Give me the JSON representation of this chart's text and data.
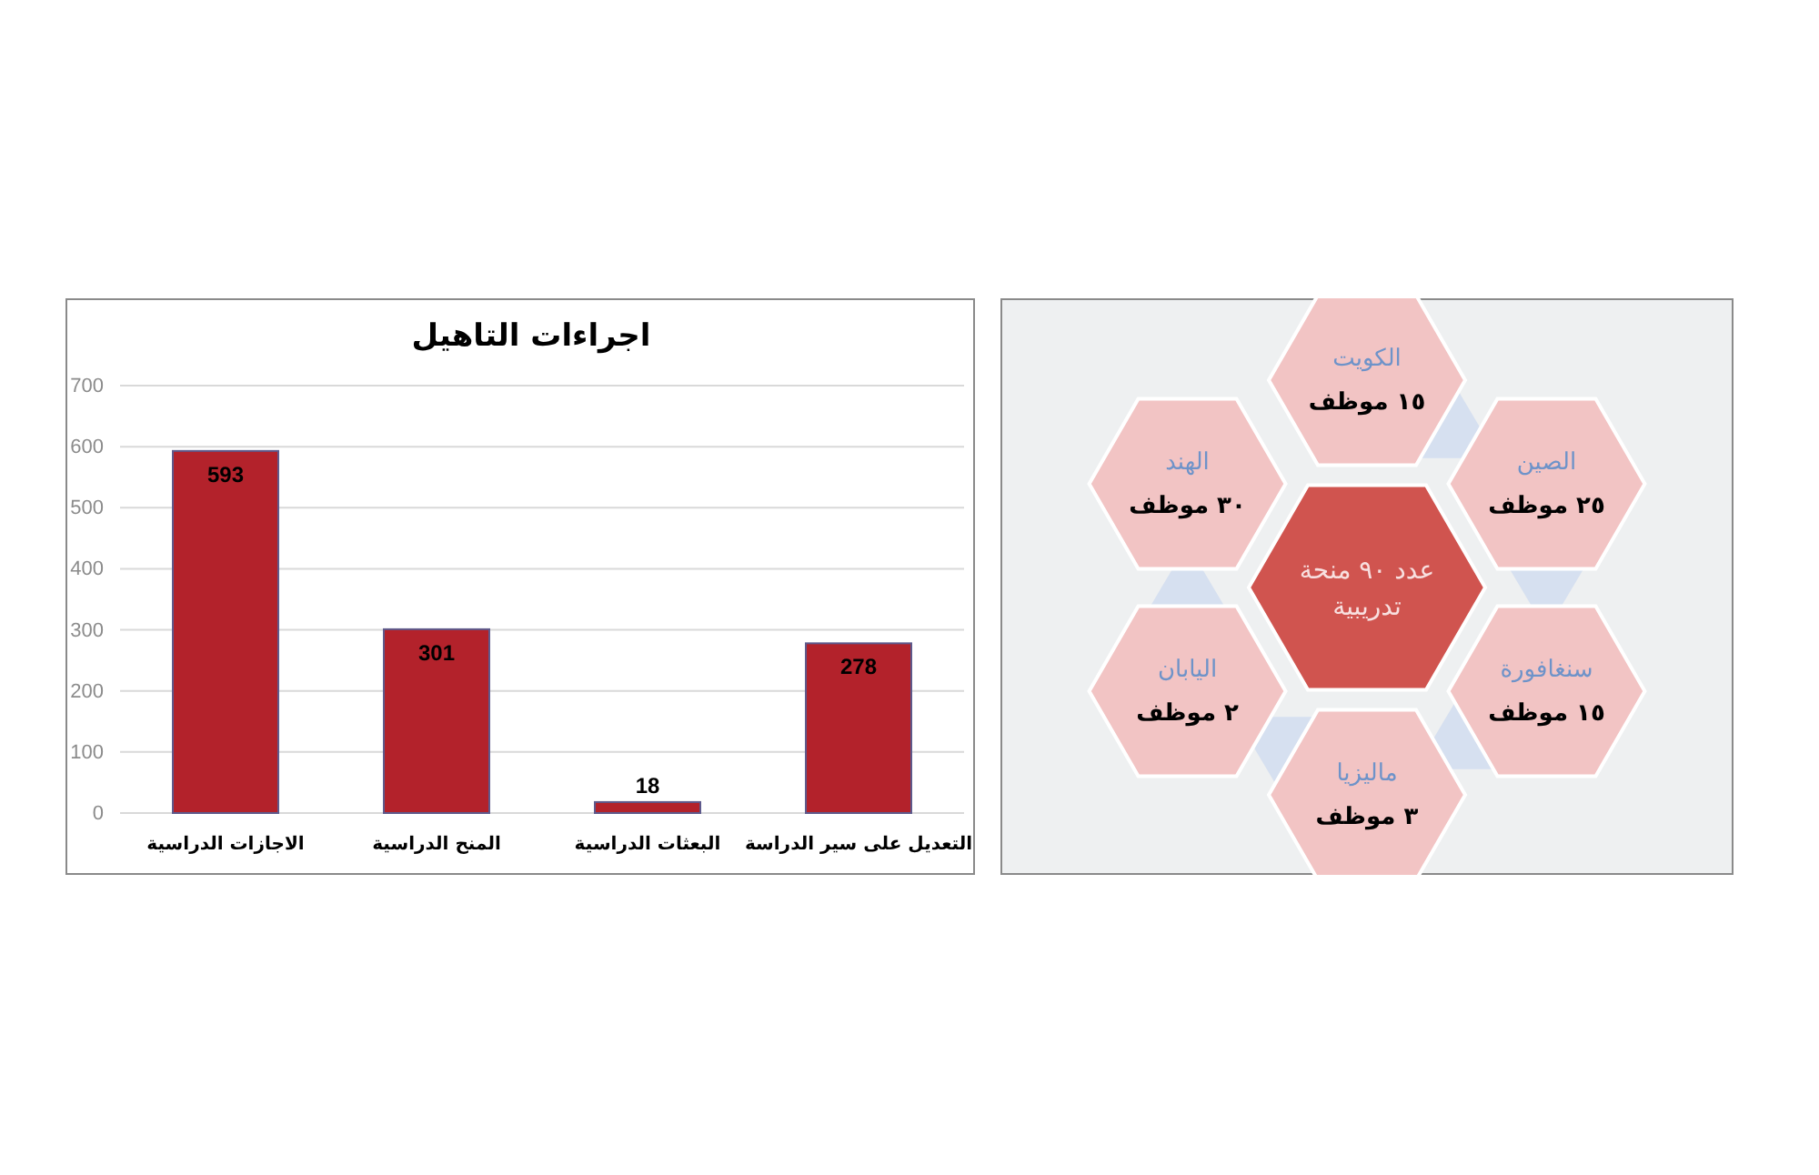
{
  "chart_data": [
    {
      "type": "bar",
      "title": "اجراءات التاهيل",
      "categories": [
        "الاجازات الدراسية",
        "المنح الدراسية",
        "البعثات الدراسية",
        "التعديل على سير الدراسة"
      ],
      "values": [
        593,
        301,
        18,
        278
      ],
      "color": "#b3222b",
      "ylim": [
        0,
        700
      ],
      "yticks": [
        0,
        100,
        200,
        300,
        400,
        500,
        600,
        700
      ],
      "grid": "y",
      "data_labels": true
    },
    {
      "type": "other",
      "categories": [
        "الكويت",
        "الصين",
        "سنغافورة",
        "ماليزيا",
        "اليابان",
        "الهند"
      ],
      "value_labels": [
        "١٥ موظف",
        "٢٥ موظف",
        "١٥ موظف",
        "٣ موظف",
        "٢ موظف",
        "٣٠ موظف"
      ],
      "annotations": [
        "عدد ٩٠ منحة تدريبية"
      ]
    }
  ]
}
